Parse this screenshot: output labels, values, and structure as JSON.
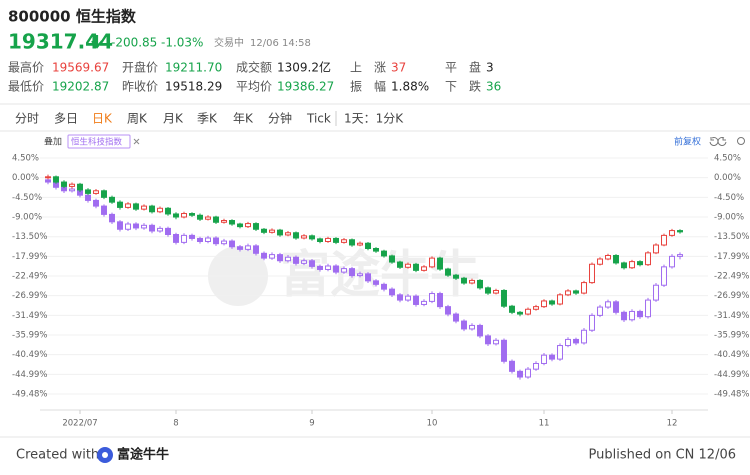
{
  "header": {
    "title": "800000 恒生指数"
  },
  "quote": {
    "price": "19317.44",
    "change": "-200.85",
    "change_pct": "-1.03%",
    "status": "交易中",
    "time": "12/06 14:58"
  },
  "stats": [
    [
      {
        "label": "最高价",
        "value": "19569.67"
      },
      {
        "label": "开盘价",
        "value": "19211.70"
      },
      {
        "label": "成交额",
        "value": "1309.2亿"
      },
      {
        "label": "上　涨",
        "value": "37"
      },
      {
        "label": "平　盘",
        "value": "3"
      }
    ],
    [
      {
        "label": "最低价",
        "value": "19202.87"
      },
      {
        "label": "昨收价",
        "value": "19518.29"
      },
      {
        "label": "平均价",
        "value": "19386.27"
      },
      {
        "label": "振　幅",
        "value": "1.88%"
      },
      {
        "label": "下　跌",
        "value": "36"
      }
    ]
  ],
  "tabs": [
    "分时",
    "多日",
    "日K",
    "周K",
    "月K",
    "季K",
    "年K",
    "分钟",
    "Tick"
  ],
  "interval": "1天：1分K",
  "overlay": {
    "label": "叠加",
    "adjust": "前复权"
  },
  "footer": {
    "created": "Created with",
    "brand": "富途牛牛",
    "published": "Published on CN 12/06"
  },
  "chart_data": {
    "type": "candlestick",
    "watermark": "富途牛牛",
    "categories": [
      null,
      null,
      null,
      null,
      "2022/07",
      null,
      null,
      null,
      null,
      null,
      null,
      null,
      null,
      null,
      null,
      null,
      "8",
      null,
      null,
      null,
      null,
      null,
      null,
      null,
      null,
      null,
      null,
      null,
      null,
      null,
      null,
      null,
      null,
      "9",
      null,
      null,
      null,
      null,
      null,
      null,
      null,
      null,
      null,
      null,
      null,
      null,
      null,
      null,
      "10",
      null,
      null,
      null,
      null,
      null,
      null,
      null,
      null,
      null,
      null,
      null,
      null,
      null,
      "11",
      null,
      null,
      null,
      null,
      null,
      null,
      null,
      null,
      null,
      null,
      null,
      null,
      null,
      null,
      null,
      "12",
      null,
      null
    ],
    "ylim": [
      -51.77,
      6.33
    ],
    "yticks": [
      {
        "value": 4.5,
        "label": "4.50%"
      },
      {
        "value": 0,
        "label": "0.00%"
      },
      {
        "value": -4.5,
        "label": "-4.50%"
      },
      {
        "value": -9,
        "label": "-9.00%"
      },
      {
        "value": -13.5,
        "label": "-13.50%"
      },
      {
        "value": -17.99,
        "label": "-17.99%"
      },
      {
        "value": -22.49,
        "label": "-22.49%"
      },
      {
        "value": -26.99,
        "label": "-26.99%"
      },
      {
        "value": -31.49,
        "label": "-31.49%"
      },
      {
        "value": -35.99,
        "label": "-35.99%"
      },
      {
        "value": -40.49,
        "label": "-40.49%"
      },
      {
        "value": -44.99,
        "label": "-44.99%"
      },
      {
        "value": -49.48,
        "label": "-49.48%"
      }
    ],
    "grid": true,
    "series": [
      {
        "up_color": "#e8413c",
        "down_color": "#16a34a",
        "ohlc": [
          [
            0.0,
            0.7,
            -0.4,
            0.2
          ],
          [
            0.2,
            0.5,
            -1.4,
            -1.0
          ],
          [
            -1.0,
            -0.6,
            -2.4,
            -2.0
          ],
          [
            -2.0,
            -1.1,
            -2.5,
            -1.5
          ],
          [
            -1.5,
            -1.2,
            -3.3,
            -2.8
          ],
          [
            -2.8,
            -2.4,
            -4.0,
            -3.6
          ],
          [
            -3.6,
            -2.6,
            -3.9,
            -3.0
          ],
          [
            -3.0,
            -2.7,
            -4.9,
            -4.5
          ],
          [
            -4.5,
            -4.1,
            -6.0,
            -5.6
          ],
          [
            -5.6,
            -5.2,
            -7.3,
            -6.8
          ],
          [
            -6.8,
            -5.6,
            -7.1,
            -6.0
          ],
          [
            -6.0,
            -5.7,
            -7.6,
            -7.2
          ],
          [
            -7.2,
            -6.1,
            -7.5,
            -6.5
          ],
          [
            -6.5,
            -6.2,
            -8.2,
            -7.8
          ],
          [
            -7.8,
            -6.6,
            -8.1,
            -7.0
          ],
          [
            -7.0,
            -6.7,
            -8.7,
            -8.3
          ],
          [
            -8.3,
            -7.9,
            -9.5,
            -9.0
          ],
          [
            -9.0,
            -7.8,
            -9.3,
            -8.2
          ],
          [
            -8.2,
            -7.9,
            -9.0,
            -8.6
          ],
          [
            -8.6,
            -8.2,
            -9.9,
            -9.5
          ],
          [
            -9.5,
            -8.6,
            -9.8,
            -9.0
          ],
          [
            -9.0,
            -8.7,
            -10.6,
            -10.2
          ],
          [
            -10.2,
            -9.4,
            -10.5,
            -9.8
          ],
          [
            -9.8,
            -9.5,
            -11.0,
            -10.6
          ],
          [
            -10.6,
            -10.3,
            -11.6,
            -11.2
          ],
          [
            -11.2,
            -10.1,
            -11.5,
            -10.5
          ],
          [
            -10.5,
            -10.2,
            -12.2,
            -11.8
          ],
          [
            -11.8,
            -11.5,
            -12.9,
            -12.5
          ],
          [
            -12.5,
            -11.6,
            -12.8,
            -12.0
          ],
          [
            -12.0,
            -11.7,
            -13.5,
            -13.1
          ],
          [
            -13.1,
            -12.2,
            -13.4,
            -12.6
          ],
          [
            -12.6,
            -12.3,
            -14.2,
            -13.8
          ],
          [
            -13.8,
            -12.9,
            -14.1,
            -13.3
          ],
          [
            -13.3,
            -13.0,
            -14.4,
            -14.0
          ],
          [
            -14.0,
            -13.7,
            -15.0,
            -14.6
          ],
          [
            -14.6,
            -13.5,
            -14.9,
            -13.9
          ],
          [
            -13.9,
            -13.6,
            -15.2,
            -14.8
          ],
          [
            -14.8,
            -13.8,
            -15.1,
            -14.2
          ],
          [
            -14.2,
            -13.9,
            -15.8,
            -15.4
          ],
          [
            -15.4,
            -14.6,
            -15.7,
            -15.0
          ],
          [
            -15.0,
            -14.7,
            -16.6,
            -16.2
          ],
          [
            -16.2,
            -15.9,
            -17.2,
            -16.8
          ],
          [
            -16.8,
            -16.5,
            -18.3,
            -17.9
          ],
          [
            -17.9,
            -17.6,
            -19.7,
            -19.3
          ],
          [
            -19.3,
            -19.0,
            -20.9,
            -20.5
          ],
          [
            -20.5,
            -19.4,
            -20.8,
            -19.8
          ],
          [
            -19.8,
            -19.5,
            -21.6,
            -21.2
          ],
          [
            -21.2,
            -20.0,
            -21.5,
            -20.4
          ],
          [
            -20.4,
            -18.0,
            -20.7,
            -18.4
          ],
          [
            -18.4,
            -18.1,
            -21.3,
            -20.9
          ],
          [
            -20.9,
            -20.6,
            -22.7,
            -22.3
          ],
          [
            -22.3,
            -22.0,
            -23.4,
            -23.0
          ],
          [
            -23.0,
            -22.7,
            -24.5,
            -24.1
          ],
          [
            -24.1,
            -23.1,
            -24.4,
            -23.5
          ],
          [
            -23.5,
            -23.2,
            -25.6,
            -25.2
          ],
          [
            -25.2,
            -24.9,
            -26.8,
            -26.4
          ],
          [
            -26.4,
            -25.4,
            -26.7,
            -25.8
          ],
          [
            -25.8,
            -25.5,
            -29.8,
            -29.4
          ],
          [
            -29.4,
            -29.1,
            -31.2,
            -30.8
          ],
          [
            -30.8,
            -30.5,
            -31.7,
            -31.2
          ],
          [
            -31.2,
            -29.7,
            -31.5,
            -30.1
          ],
          [
            -30.1,
            -29.1,
            -30.4,
            -29.5
          ],
          [
            -29.5,
            -27.8,
            -29.8,
            -28.2
          ],
          [
            -28.2,
            -27.9,
            -29.3,
            -28.9
          ],
          [
            -28.9,
            -26.4,
            -29.2,
            -26.8
          ],
          [
            -26.8,
            -25.5,
            -27.1,
            -25.9
          ],
          [
            -25.9,
            -25.6,
            -26.8,
            -26.4
          ],
          [
            -26.4,
            -23.6,
            -26.7,
            -24.0
          ],
          [
            -24.0,
            -19.4,
            -24.3,
            -19.8
          ],
          [
            -19.8,
            -18.2,
            -20.1,
            -18.6
          ],
          [
            -18.6,
            -17.4,
            -18.9,
            -17.8
          ],
          [
            -17.8,
            -17.5,
            -19.9,
            -19.5
          ],
          [
            -19.5,
            -19.2,
            -21.0,
            -20.6
          ],
          [
            -20.6,
            -18.8,
            -20.9,
            -19.2
          ],
          [
            -19.2,
            -18.9,
            -20.3,
            -19.9
          ],
          [
            -19.9,
            -16.8,
            -20.2,
            -17.2
          ],
          [
            -17.2,
            -15.0,
            -17.5,
            -15.4
          ],
          [
            -15.4,
            -12.8,
            -15.7,
            -13.2
          ],
          [
            -13.2,
            -11.7,
            -13.5,
            -12.1
          ],
          [
            -12.1,
            -11.8,
            -12.8,
            -12.4
          ]
        ]
      },
      {
        "name": "恒生科技指数",
        "color": "#a06cf0",
        "ohlc": [
          [
            -0.5,
            0.0,
            -1.5,
            -1.0
          ],
          [
            -1.0,
            -0.6,
            -2.7,
            -2.2
          ],
          [
            -2.2,
            -1.8,
            -3.5,
            -3.0
          ],
          [
            -3.0,
            -2.1,
            -3.4,
            -2.6
          ],
          [
            -2.6,
            -2.2,
            -4.5,
            -4.0
          ],
          [
            -4.0,
            -3.6,
            -5.7,
            -5.2
          ],
          [
            -5.2,
            -4.8,
            -7.0,
            -6.5
          ],
          [
            -6.5,
            -6.1,
            -8.9,
            -8.4
          ],
          [
            -8.4,
            -8.0,
            -10.6,
            -10.1
          ],
          [
            -10.1,
            -9.7,
            -12.3,
            -11.8
          ],
          [
            -11.8,
            -10.1,
            -12.2,
            -10.6
          ],
          [
            -10.6,
            -10.2,
            -12.0,
            -11.5
          ],
          [
            -11.5,
            -10.4,
            -11.9,
            -10.9
          ],
          [
            -10.9,
            -10.5,
            -12.7,
            -12.2
          ],
          [
            -12.2,
            -11.1,
            -12.6,
            -11.6
          ],
          [
            -11.6,
            -11.2,
            -13.5,
            -13.0
          ],
          [
            -13.0,
            -12.6,
            -15.3,
            -14.8
          ],
          [
            -14.8,
            -12.7,
            -15.2,
            -13.2
          ],
          [
            -13.2,
            -12.8,
            -14.4,
            -13.9
          ],
          [
            -13.9,
            -13.5,
            -15.1,
            -14.6
          ],
          [
            -14.6,
            -13.3,
            -15.0,
            -13.8
          ],
          [
            -13.8,
            -13.4,
            -15.6,
            -15.1
          ],
          [
            -15.1,
            -14.0,
            -15.5,
            -14.5
          ],
          [
            -14.5,
            -14.1,
            -16.3,
            -15.8
          ],
          [
            -15.8,
            -15.4,
            -16.9,
            -16.4
          ],
          [
            -16.4,
            -15.1,
            -16.8,
            -15.6
          ],
          [
            -15.6,
            -15.2,
            -17.8,
            -17.3
          ],
          [
            -17.3,
            -16.9,
            -18.9,
            -18.4
          ],
          [
            -18.4,
            -17.1,
            -18.8,
            -17.6
          ],
          [
            -17.6,
            -17.2,
            -19.5,
            -19.0
          ],
          [
            -19.0,
            -17.7,
            -19.4,
            -18.2
          ],
          [
            -18.2,
            -17.8,
            -20.1,
            -19.6
          ],
          [
            -19.6,
            -18.5,
            -20.0,
            -19.0
          ],
          [
            -19.0,
            -18.6,
            -20.8,
            -20.3
          ],
          [
            -20.3,
            -19.9,
            -21.5,
            -21.0
          ],
          [
            -21.0,
            -19.7,
            -21.4,
            -20.2
          ],
          [
            -20.2,
            -19.8,
            -22.1,
            -21.6
          ],
          [
            -21.6,
            -20.3,
            -22.0,
            -20.8
          ],
          [
            -20.8,
            -20.4,
            -22.9,
            -22.4
          ],
          [
            -22.4,
            -21.5,
            -22.8,
            -22.0
          ],
          [
            -22.0,
            -21.6,
            -24.1,
            -23.6
          ],
          [
            -23.6,
            -23.2,
            -24.9,
            -24.4
          ],
          [
            -24.4,
            -24.0,
            -26.0,
            -25.5
          ],
          [
            -25.5,
            -25.1,
            -27.3,
            -26.8
          ],
          [
            -26.8,
            -26.4,
            -28.5,
            -28.0
          ],
          [
            -28.0,
            -26.6,
            -28.4,
            -27.1
          ],
          [
            -27.1,
            -26.7,
            -29.5,
            -29.0
          ],
          [
            -29.0,
            -27.8,
            -29.4,
            -28.3
          ],
          [
            -28.3,
            -26.0,
            -28.7,
            -26.5
          ],
          [
            -26.5,
            -26.1,
            -30.0,
            -29.5
          ],
          [
            -29.5,
            -29.1,
            -31.7,
            -31.2
          ],
          [
            -31.2,
            -30.8,
            -33.3,
            -32.8
          ],
          [
            -32.8,
            -32.4,
            -35.1,
            -34.6
          ],
          [
            -34.6,
            -33.3,
            -35.0,
            -33.8
          ],
          [
            -33.8,
            -33.4,
            -36.7,
            -36.2
          ],
          [
            -36.2,
            -35.8,
            -38.5,
            -38.0
          ],
          [
            -38.0,
            -36.7,
            -38.4,
            -37.2
          ],
          [
            -37.2,
            -36.8,
            -42.5,
            -42.0
          ],
          [
            -42.0,
            -41.6,
            -44.8,
            -44.3
          ],
          [
            -44.3,
            -43.9,
            -46.2,
            -45.6
          ],
          [
            -45.6,
            -43.3,
            -46.0,
            -43.8
          ],
          [
            -43.8,
            -42.0,
            -44.2,
            -42.5
          ],
          [
            -42.5,
            -40.1,
            -42.9,
            -40.6
          ],
          [
            -40.6,
            -40.2,
            -42.0,
            -41.5
          ],
          [
            -41.5,
            -37.9,
            -41.9,
            -38.4
          ],
          [
            -38.4,
            -36.5,
            -38.8,
            -37.0
          ],
          [
            -37.0,
            -36.6,
            -38.3,
            -37.8
          ],
          [
            -37.8,
            -34.4,
            -38.2,
            -34.9
          ],
          [
            -34.9,
            -31.0,
            -35.3,
            -31.5
          ],
          [
            -31.5,
            -29.1,
            -31.9,
            -29.6
          ],
          [
            -29.6,
            -27.9,
            -30.0,
            -28.4
          ],
          [
            -28.4,
            -28.0,
            -31.3,
            -30.8
          ],
          [
            -30.8,
            -30.4,
            -33.0,
            -32.5
          ],
          [
            -32.5,
            -30.1,
            -32.9,
            -30.6
          ],
          [
            -30.6,
            -30.2,
            -32.3,
            -31.8
          ],
          [
            -31.8,
            -27.5,
            -32.2,
            -28.0
          ],
          [
            -28.0,
            -24.1,
            -28.4,
            -24.6
          ],
          [
            -24.6,
            -19.9,
            -25.0,
            -20.4
          ],
          [
            -20.4,
            -17.5,
            -20.8,
            -18.0
          ],
          [
            -18.0,
            -17.1,
            -18.7,
            -17.6
          ]
        ]
      }
    ]
  }
}
